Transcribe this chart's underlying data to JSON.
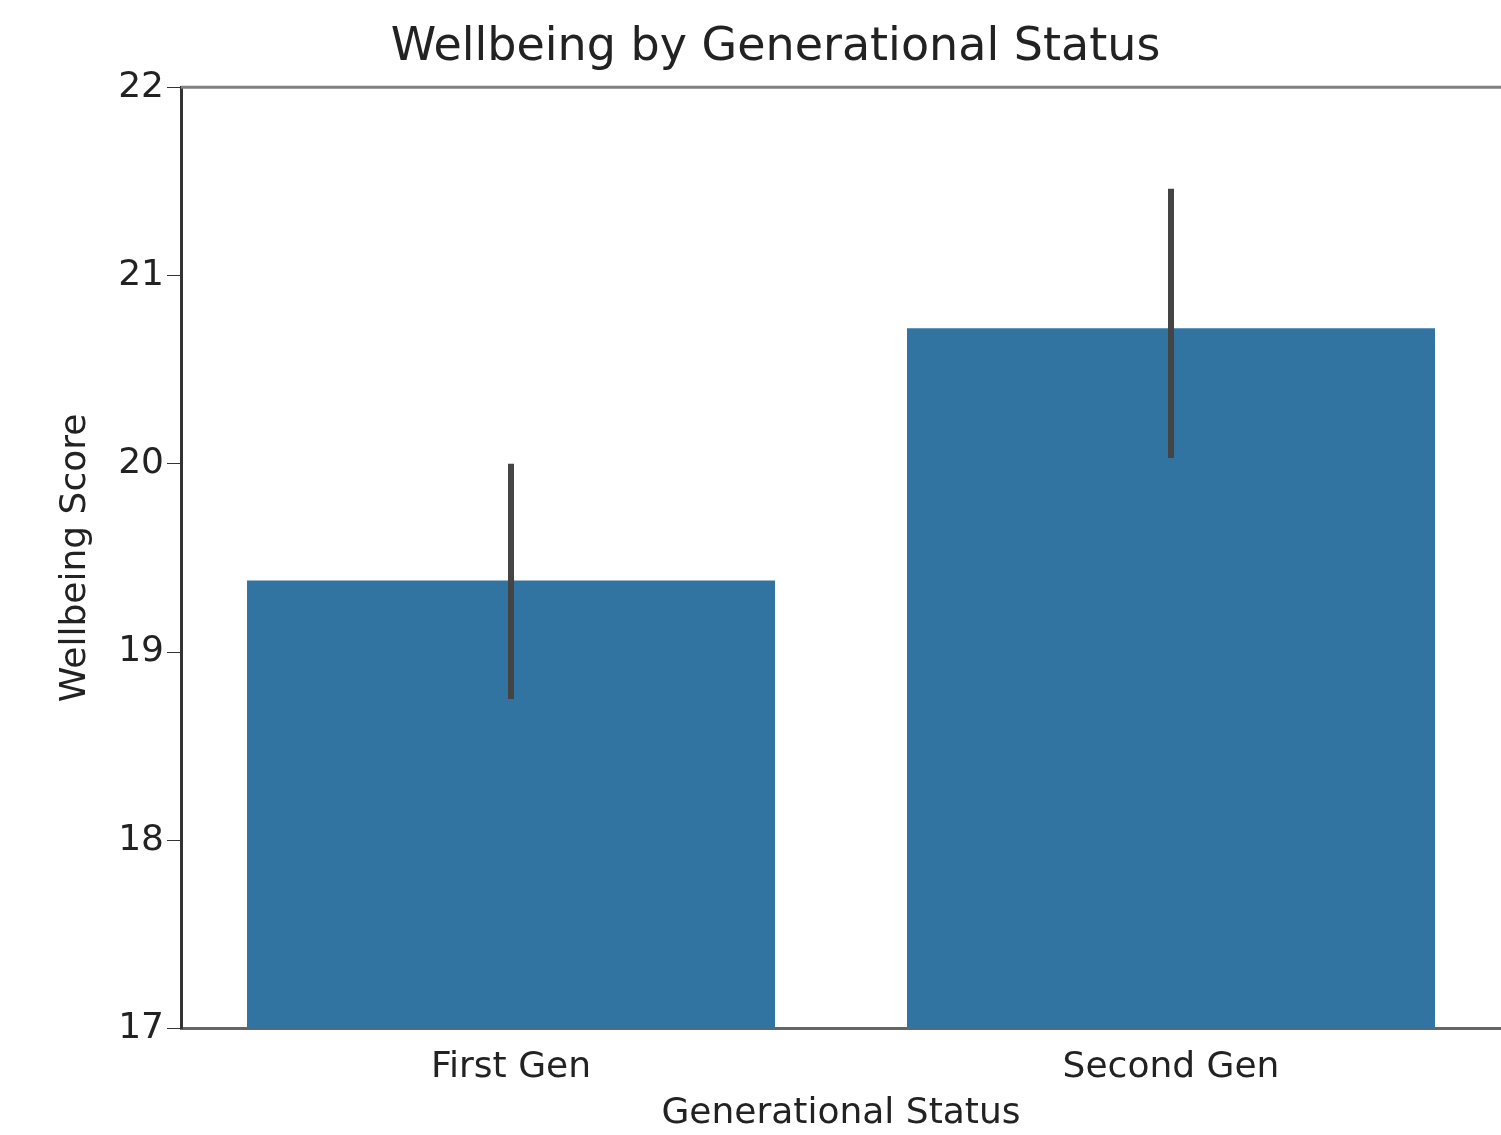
{
  "chart_data": {
    "type": "bar",
    "title": "Wellbeing by Generational Status",
    "xlabel": "Generational Status",
    "ylabel": "Wellbeing Score",
    "categories": [
      "First Gen",
      "Second Gen"
    ],
    "series": [
      {
        "color": "#3274a1",
        "values": [
          19.38,
          20.72
        ],
        "errors": [
          [
            18.75,
            20.0
          ],
          [
            20.03,
            21.46
          ]
        ]
      }
    ],
    "ylim": [
      17,
      22
    ],
    "yticks": [
      17,
      18,
      19,
      20,
      21,
      22
    ],
    "grid": false,
    "legend": false
  }
}
